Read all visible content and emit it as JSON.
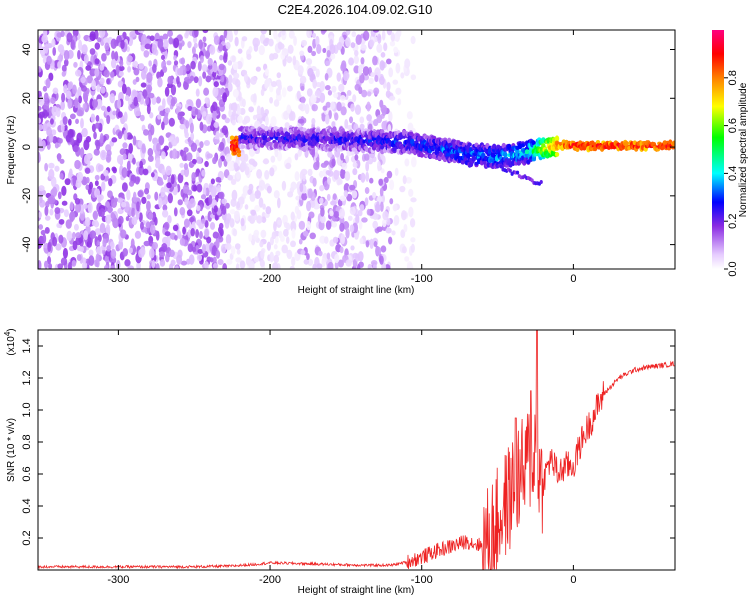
{
  "title": "C2E4.2026.104.09.02.G10",
  "chart_data": [
    {
      "type": "heatmap",
      "xlabel": "Height of straight line (km)",
      "ylabel": "Frequency (Hz)",
      "xlim": [
        -353,
        67
      ],
      "ylim": [
        -50,
        48
      ],
      "xticks": [
        -300,
        -200,
        -100,
        0
      ],
      "yticks": [
        -40,
        -20,
        0,
        20,
        40
      ],
      "colorbar": {
        "label": "Normalized spectral amplitude",
        "range": [
          0,
          1
        ],
        "ticks": [
          "0.0",
          "0.2",
          "0.4",
          "0.6",
          "0.8"
        ],
        "stops": [
          "#ffffff",
          "#e0c2ff",
          "#8a2be2",
          "#0000ff",
          "#00ffff",
          "#00ff00",
          "#ffff00",
          "#ff8000",
          "#ff0000",
          "#ff0080"
        ]
      },
      "description_track": [
        {
          "x": -220,
          "freq": 4,
          "amp": 0.3
        },
        {
          "x": -150,
          "freq": 3,
          "amp": 0.3
        },
        {
          "x": -110,
          "freq": 2,
          "amp": 0.35
        },
        {
          "x": -70,
          "freq": -3,
          "amp": 0.4
        },
        {
          "x": -50,
          "freq": -4,
          "amp": 0.4
        },
        {
          "x": -30,
          "freq": -2,
          "amp": 0.45
        },
        {
          "x": -10,
          "freq": 1,
          "amp": 0.8
        },
        {
          "x": 0,
          "freq": 0.5,
          "amp": 0.9
        },
        {
          "x": 67,
          "freq": 0.5,
          "amp": 0.9
        }
      ]
    },
    {
      "type": "line",
      "xlabel": "Height of straight line (km)",
      "ylabel": "SNR (10 * v/v)",
      "multiplier": "(x10",
      "multiplier_exp": "4",
      "multiplier_close": ")",
      "xlim": [
        -353,
        67
      ],
      "ylim": [
        0,
        1.5
      ],
      "xticks": [
        -300,
        -200,
        -100,
        0
      ],
      "yticks": [
        "0.2",
        "0.4",
        "0.6",
        "0.8",
        "1.0",
        "1.2",
        "1.4"
      ],
      "color": "#ee2222",
      "series": [
        {
          "name": "SNR",
          "x": [
            -353,
            -300,
            -250,
            -225,
            -210,
            -200,
            -180,
            -160,
            -140,
            -120,
            -110,
            -100,
            -90,
            -80,
            -70,
            -60,
            -55,
            -50,
            -45,
            -40,
            -35,
            -32,
            -30,
            -28,
            -26,
            -24,
            -22,
            -20,
            -15,
            -10,
            -5,
            0,
            5,
            10,
            15,
            20,
            30,
            40,
            50,
            60,
            67
          ],
          "y": [
            0.02,
            0.02,
            0.02,
            0.025,
            0.035,
            0.045,
            0.04,
            0.035,
            0.03,
            0.03,
            0.05,
            0.08,
            0.12,
            0.15,
            0.18,
            0.15,
            0.2,
            0.3,
            0.4,
            0.5,
            0.6,
            0.6,
            0.7,
            0.7,
            0.75,
            0.8,
            0.55,
            0.55,
            0.7,
            0.6,
            0.65,
            0.65,
            0.8,
            0.9,
            1.0,
            1.1,
            1.2,
            1.25,
            1.27,
            1.28,
            1.29
          ]
        }
      ],
      "spikes": [
        {
          "x": -28,
          "y": 1.12
        },
        {
          "x": -24,
          "y": 1.5
        },
        {
          "x": -38,
          "y": 0.95
        }
      ]
    }
  ]
}
